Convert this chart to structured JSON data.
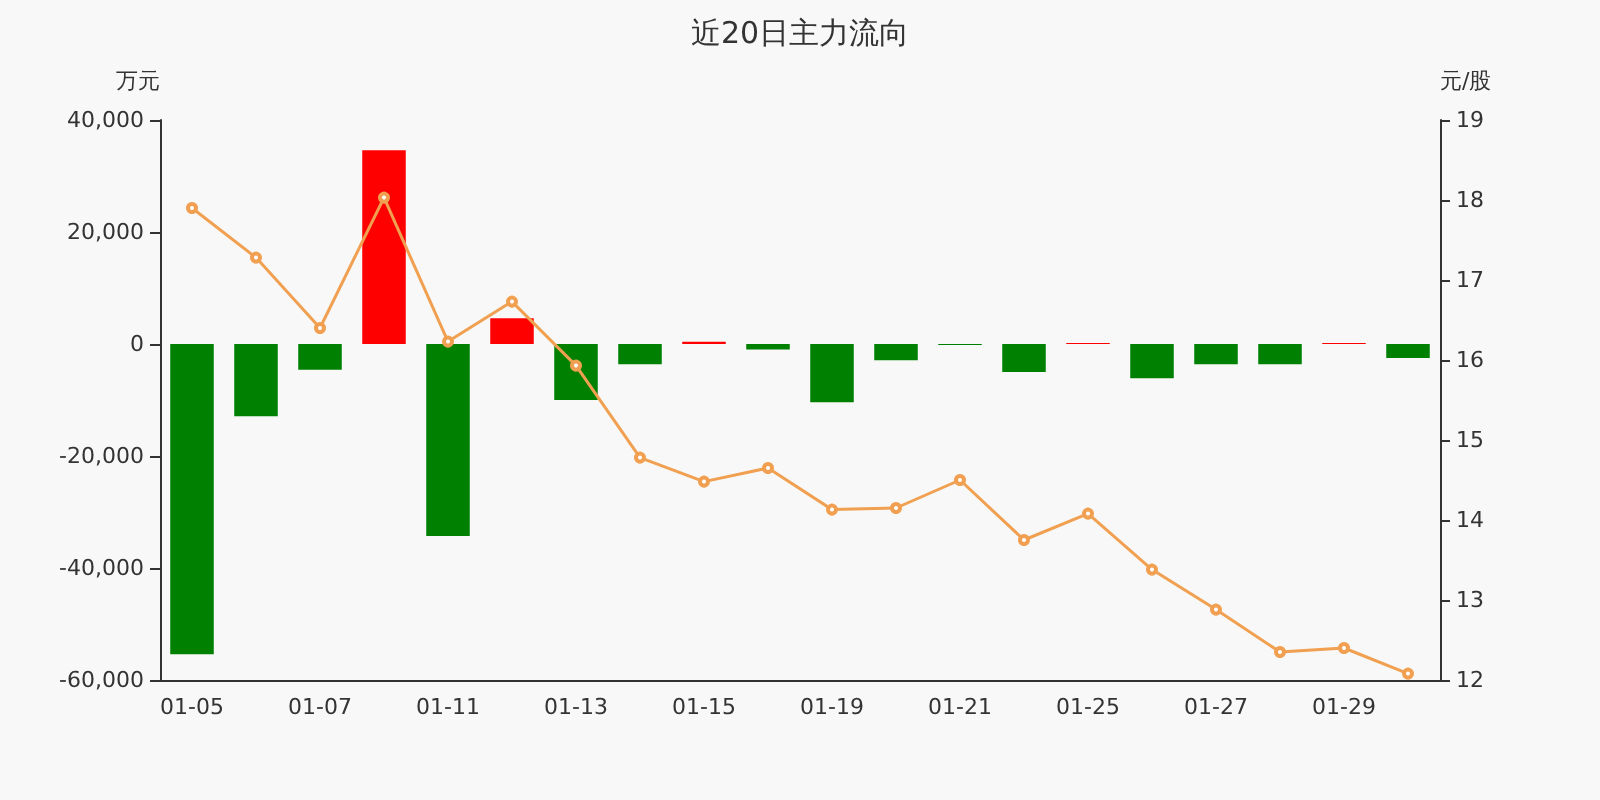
{
  "chart_data": {
    "type": "bar",
    "title": "近20日主力流向",
    "ylabel": "万元",
    "y2label": "元/股",
    "categories": [
      "01-05",
      null,
      "01-07",
      null,
      "01-11",
      null,
      "01-13",
      null,
      "01-15",
      null,
      "01-19",
      null,
      "01-21",
      null,
      "01-25",
      null,
      "01-27",
      null,
      "01-29",
      null
    ],
    "series": [
      {
        "values": [
          -55400,
          -12900,
          -4600,
          34600,
          -34300,
          4600,
          -10000,
          -3600,
          400,
          -1000,
          -10400,
          -2900,
          -200,
          -5000,
          200,
          -6100,
          -3600,
          -3600,
          200,
          -2500
        ],
        "colors": [
          "#008000",
          "#008000",
          "#008000",
          "#ff0000",
          "#008000",
          "#ff0000",
          "#008000",
          "#008000",
          "#ff0000",
          "#008000",
          "#008000",
          "#008000",
          "#008000",
          "#008000",
          "#ff0000",
          "#008000",
          "#008000",
          "#008000",
          "#ff0000",
          "#008000"
        ]
      },
      {
        "type": "line",
        "axis": "y2",
        "color": "#f0a050",
        "marker": "circle",
        "values": [
          17.9,
          17.28,
          16.4,
          18.03,
          16.23,
          16.73,
          15.93,
          14.78,
          14.48,
          14.65,
          14.13,
          14.15,
          14.5,
          13.75,
          14.08,
          13.38,
          12.88,
          12.35,
          12.4,
          12.08
        ]
      }
    ],
    "ylim": [
      -60000,
      40000
    ],
    "yticks": [
      {
        "value": -60000,
        "label": "-60,000"
      },
      {
        "value": -40000,
        "label": "-40,000"
      },
      {
        "value": -20000,
        "label": "-20,000"
      },
      0,
      {
        "value": 20000,
        "label": "20,000"
      },
      {
        "value": 40000,
        "label": "40,000"
      }
    ],
    "y2lim": [
      12,
      19
    ],
    "y2ticks": [
      12,
      13,
      14,
      15,
      16,
      17,
      18,
      19
    ],
    "grid": false
  }
}
